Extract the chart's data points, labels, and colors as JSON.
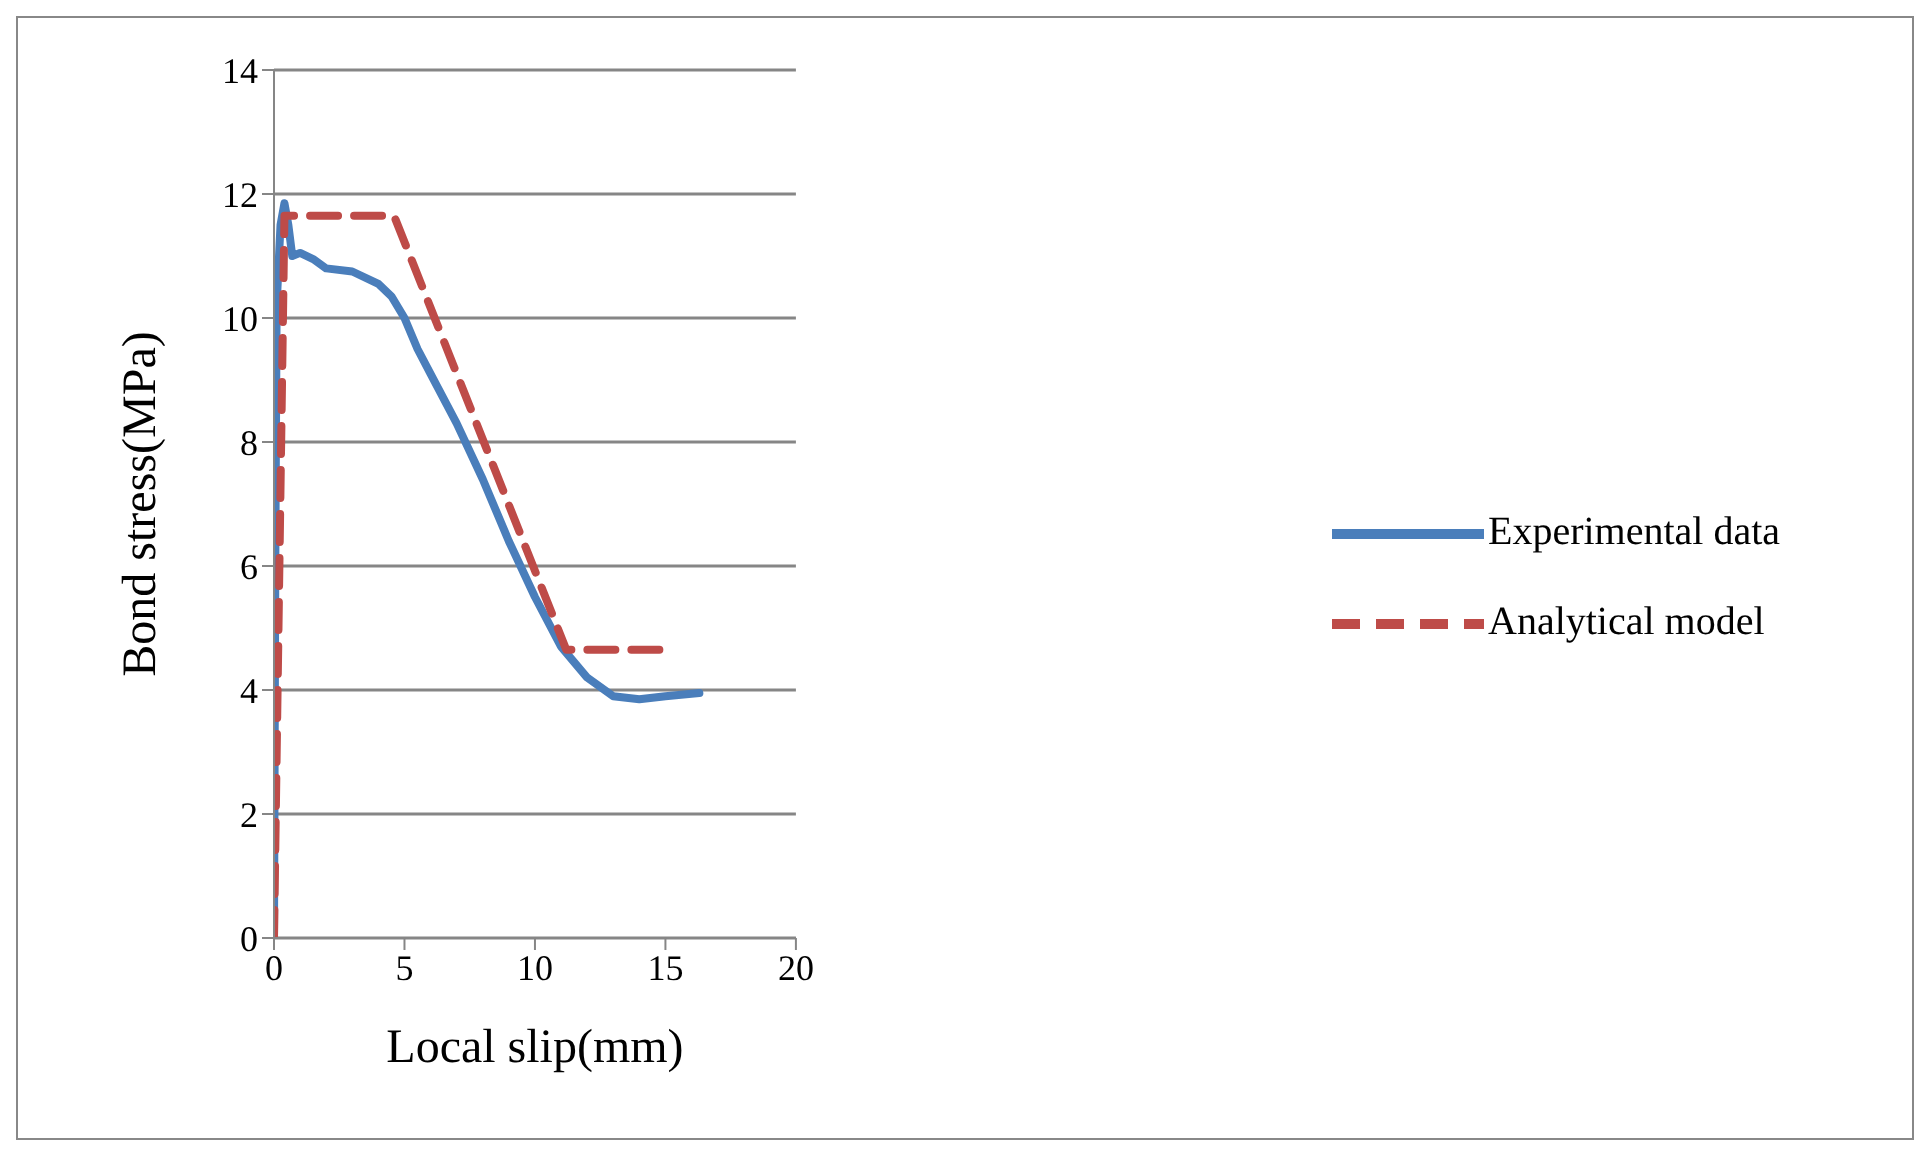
{
  "chart_data": {
    "type": "line",
    "xlabel": "Local slip(mm)",
    "ylabel": "Bond stress(MPa)",
    "xlim": [
      0,
      20
    ],
    "xticks": [
      0,
      5,
      10,
      15,
      20
    ],
    "ylim": [
      0,
      14
    ],
    "yticks": [
      0,
      2,
      4,
      6,
      8,
      10,
      12,
      14
    ],
    "grid": "y",
    "legend": "right",
    "marker": "none",
    "series": [
      {
        "name": "Experimental data",
        "color": "#4a7ebb",
        "line_style": "solid",
        "x": [
          0,
          0.05,
          0.1,
          0.25,
          0.4,
          0.55,
          0.7,
          1,
          1.5,
          2,
          3,
          4,
          4.5,
          5,
          5.5,
          6,
          7,
          8,
          9,
          10,
          11,
          12,
          13,
          14,
          15,
          16.3
        ],
        "values": [
          0,
          6,
          10.2,
          11.5,
          11.85,
          11.5,
          11,
          11.05,
          10.95,
          10.8,
          10.75,
          10.55,
          10.35,
          10,
          9.5,
          9.1,
          8.3,
          7.4,
          6.4,
          5.5,
          4.7,
          4.2,
          3.9,
          3.85,
          3.9,
          3.95
        ]
      },
      {
        "name": "Analytical model",
        "color": "#be4b48",
        "line_style": "dashed",
        "x": [
          0,
          0.4,
          4.6,
          11.2,
          15
        ],
        "values": [
          0,
          11.65,
          11.65,
          4.65,
          4.65
        ]
      }
    ]
  }
}
